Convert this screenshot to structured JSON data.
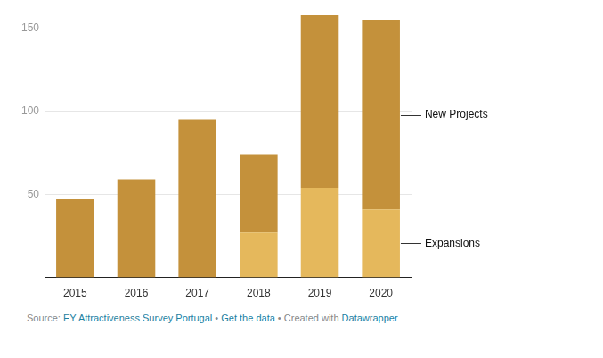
{
  "chart_data": {
    "type": "bar",
    "stacked": true,
    "grid": true,
    "legend": "right",
    "categories": [
      "2015",
      "2016",
      "2017",
      "2018",
      "2019",
      "2020"
    ],
    "series": [
      {
        "name": "Expansions",
        "color": "#e5b85c",
        "values": [
          0,
          0,
          0,
          27,
          54,
          41
        ]
      },
      {
        "name": "New Projects",
        "color": "#c4913b",
        "values": [
          47,
          59,
          95,
          47,
          104,
          114
        ]
      }
    ],
    "ylim": [
      0,
      160
    ],
    "yticks": [
      50,
      100,
      150
    ],
    "footer": [
      "Source: ",
      "EY Attractiveness Survey Portugal",
      " • ",
      "Get the data",
      " • Created with ",
      "Datawrapper"
    ]
  }
}
